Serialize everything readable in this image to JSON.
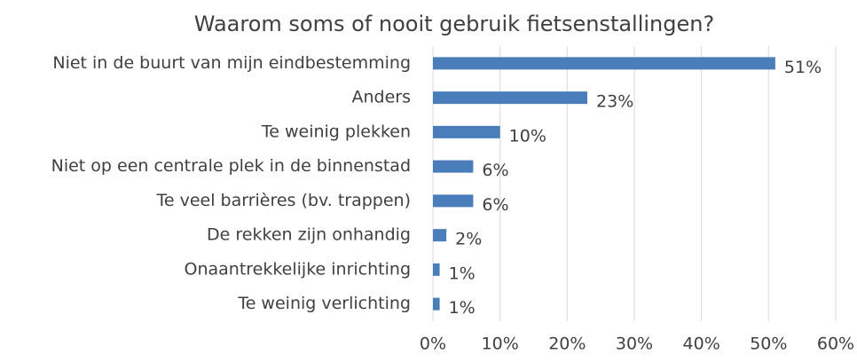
{
  "chart_data": {
    "type": "barh",
    "title": "Waarom soms of nooit gebruik fietsenstallingen?",
    "categories": [
      "Niet in de buurt van mijn eindbestemming",
      "Anders",
      "Te weinig plekken",
      "Niet op een centrale plek in de binnenstad",
      "Te veel barrières (bv. trappen)",
      "De rekken zijn onhandig",
      "Onaantrekkelijke inrichting",
      "Te weinig verlichting"
    ],
    "values": [
      51,
      23,
      10,
      6,
      6,
      2,
      1,
      1
    ],
    "value_labels": [
      "51%",
      "23%",
      "10%",
      "6%",
      "6%",
      "2%",
      "1%",
      "1%"
    ],
    "color": "#4a7ebb",
    "xlim": [
      0,
      60
    ],
    "xticks": [
      {
        "value": 0,
        "label": "0%"
      },
      {
        "value": 10,
        "label": "10%"
      },
      {
        "value": 20,
        "label": "20%"
      },
      {
        "value": 30,
        "label": "30%"
      },
      {
        "value": 40,
        "label": "40%"
      },
      {
        "value": 50,
        "label": "50%"
      },
      {
        "value": 60,
        "label": "60%"
      }
    ],
    "grid": true
  }
}
